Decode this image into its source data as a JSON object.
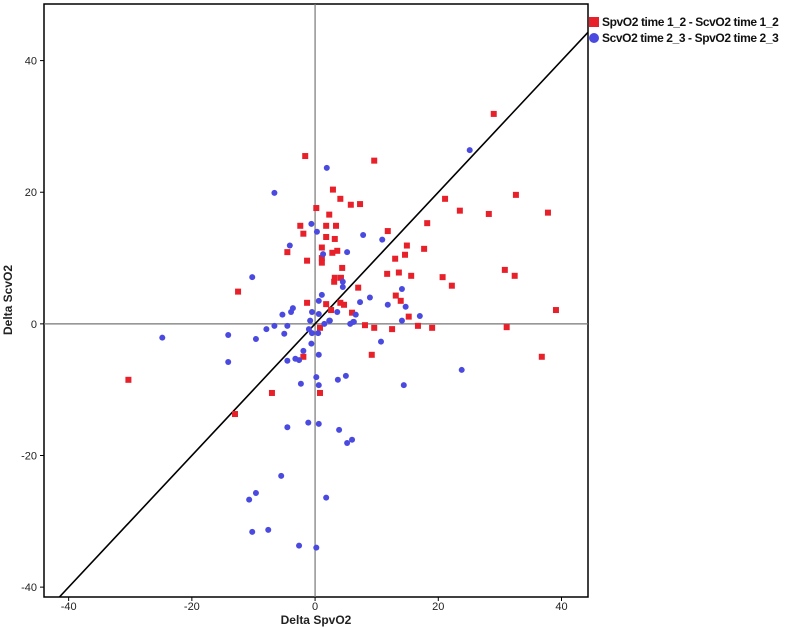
{
  "chart_data": {
    "type": "scatter",
    "title": "",
    "xlabel": "Delta SpvO2",
    "ylabel": "Delta ScvO2",
    "xlim": [
      -44,
      44.3
    ],
    "ylim": [
      -41.5,
      48.6
    ],
    "xticks": [
      -40,
      -20,
      0,
      20,
      40
    ],
    "yticks": [
      -40,
      -20,
      0,
      20,
      40
    ],
    "grid": false,
    "reference_lines": {
      "x0": true,
      "y0": true,
      "identity_line": true
    },
    "legend_position": "top-right",
    "series": [
      {
        "name": "SpvO2 time 1_2 - ScvO2 time 1_2",
        "color": "#e8202a",
        "marker": "square",
        "points": [
          [
            -1.6,
            25.5
          ],
          [
            9.6,
            24.8
          ],
          [
            2.9,
            20.4
          ],
          [
            4.1,
            19.0
          ],
          [
            5.8,
            18.1
          ],
          [
            7.3,
            18.2
          ],
          [
            0.2,
            17.6
          ],
          [
            2.3,
            16.6
          ],
          [
            -2.4,
            14.9
          ],
          [
            -1.9,
            13.7
          ],
          [
            1.8,
            14.9
          ],
          [
            3.4,
            14.9
          ],
          [
            1.8,
            13.2
          ],
          [
            3.2,
            12.9
          ],
          [
            11.8,
            14.1
          ],
          [
            18.2,
            15.3
          ],
          [
            -4.5,
            10.9
          ],
          [
            1.1,
            11.6
          ],
          [
            2.8,
            10.8
          ],
          [
            3.6,
            11.1
          ],
          [
            -1.3,
            9.6
          ],
          [
            1.1,
            10.0
          ],
          [
            1.1,
            9.3
          ],
          [
            14.9,
            11.9
          ],
          [
            17.7,
            11.4
          ],
          [
            13.0,
            9.9
          ],
          [
            14.6,
            10.5
          ],
          [
            4.4,
            8.5
          ],
          [
            11.7,
            7.6
          ],
          [
            13.6,
            7.8
          ],
          [
            15.6,
            7.3
          ],
          [
            -12.5,
            4.9
          ],
          [
            3.2,
            7.0
          ],
          [
            4.2,
            7.0
          ],
          [
            3.1,
            6.4
          ],
          [
            7.0,
            5.5
          ],
          [
            13.1,
            4.3
          ],
          [
            13.9,
            3.5
          ],
          [
            -1.3,
            3.2
          ],
          [
            1.8,
            3.0
          ],
          [
            4.1,
            3.2
          ],
          [
            4.7,
            2.9
          ],
          [
            2.6,
            2.1
          ],
          [
            6.0,
            1.7
          ],
          [
            15.2,
            1.1
          ],
          [
            16.7,
            -0.3
          ],
          [
            19.0,
            -0.6
          ],
          [
            8.1,
            -0.2
          ],
          [
            9.6,
            -0.6
          ],
          [
            12.5,
            -0.8
          ],
          [
            29.0,
            31.9
          ],
          [
            32.6,
            19.6
          ],
          [
            21.1,
            19.0
          ],
          [
            23.5,
            17.2
          ],
          [
            28.2,
            16.7
          ],
          [
            37.8,
            16.9
          ],
          [
            20.7,
            7.1
          ],
          [
            22.2,
            5.8
          ],
          [
            30.8,
            8.2
          ],
          [
            32.4,
            7.3
          ],
          [
            39.1,
            2.1
          ],
          [
            31.1,
            -0.5
          ],
          [
            36.8,
            -5.0
          ],
          [
            -30.3,
            -8.5
          ],
          [
            -7.0,
            -10.5
          ],
          [
            -13.0,
            -13.7
          ],
          [
            0.8,
            -10.5
          ],
          [
            -1.9,
            -5.0
          ],
          [
            9.2,
            -4.7
          ],
          [
            0.8,
            -0.6
          ]
        ]
      },
      {
        "name": "ScvO2 time 2_3 - SpvO2 time 2_3",
        "color": "#4a4ae0",
        "marker": "circle",
        "points": [
          [
            25.1,
            26.4
          ],
          [
            1.9,
            23.7
          ],
          [
            -6.6,
            19.9
          ],
          [
            -0.6,
            15.2
          ],
          [
            0.3,
            14.0
          ],
          [
            -4.1,
            11.9
          ],
          [
            7.8,
            13.5
          ],
          [
            10.9,
            12.8
          ],
          [
            1.3,
            10.6
          ],
          [
            5.2,
            10.9
          ],
          [
            -10.2,
            7.1
          ],
          [
            4.5,
            6.4
          ],
          [
            4.5,
            5.6
          ],
          [
            14.1,
            5.3
          ],
          [
            8.9,
            4.0
          ],
          [
            7.3,
            3.3
          ],
          [
            11.8,
            2.9
          ],
          [
            14.7,
            2.6
          ],
          [
            1.1,
            4.4
          ],
          [
            0.6,
            3.5
          ],
          [
            -3.6,
            2.4
          ],
          [
            -3.9,
            1.8
          ],
          [
            -5.3,
            1.4
          ],
          [
            -0.5,
            1.8
          ],
          [
            0.6,
            1.5
          ],
          [
            6.6,
            1.4
          ],
          [
            17.0,
            1.2
          ],
          [
            14.1,
            0.5
          ],
          [
            3.6,
            1.8
          ],
          [
            -0.8,
            0.5
          ],
          [
            2.4,
            0.5
          ],
          [
            6.2,
            0.3
          ],
          [
            5.7,
            0.0
          ],
          [
            6.3,
            0.3
          ],
          [
            2.3,
            0.5
          ],
          [
            1.5,
            0.0
          ],
          [
            10.7,
            -2.7
          ],
          [
            14.4,
            -9.3
          ],
          [
            23.8,
            -7.0
          ],
          [
            -24.8,
            -2.1
          ],
          [
            -14.1,
            -1.7
          ],
          [
            -14.1,
            -5.8
          ],
          [
            -9.6,
            -2.3
          ],
          [
            -7.9,
            -0.8
          ],
          [
            -6.6,
            -0.3
          ],
          [
            -5.0,
            -1.5
          ],
          [
            -4.5,
            -0.3
          ],
          [
            -4.5,
            -5.6
          ],
          [
            -3.2,
            -5.3
          ],
          [
            -2.6,
            -5.5
          ],
          [
            -1.9,
            -4.1
          ],
          [
            -0.6,
            -3.0
          ],
          [
            -0.5,
            -1.4
          ],
          [
            0.5,
            -1.4
          ],
          [
            -1.0,
            -0.8
          ],
          [
            0.6,
            -4.7
          ],
          [
            0.2,
            -8.1
          ],
          [
            0.6,
            -9.3
          ],
          [
            -2.3,
            -9.1
          ],
          [
            3.7,
            -8.5
          ],
          [
            5.0,
            -7.9
          ],
          [
            -4.5,
            -15.7
          ],
          [
            -1.1,
            -15.0
          ],
          [
            0.6,
            -15.2
          ],
          [
            3.9,
            -16.1
          ],
          [
            5.2,
            -18.1
          ],
          [
            6.0,
            -17.6
          ],
          [
            -5.5,
            -23.1
          ],
          [
            -9.6,
            -25.7
          ],
          [
            -10.7,
            -26.7
          ],
          [
            1.8,
            -26.4
          ],
          [
            -10.2,
            -31.6
          ],
          [
            -7.6,
            -31.3
          ],
          [
            -2.6,
            -33.7
          ],
          [
            0.2,
            -34.0
          ]
        ]
      }
    ]
  }
}
